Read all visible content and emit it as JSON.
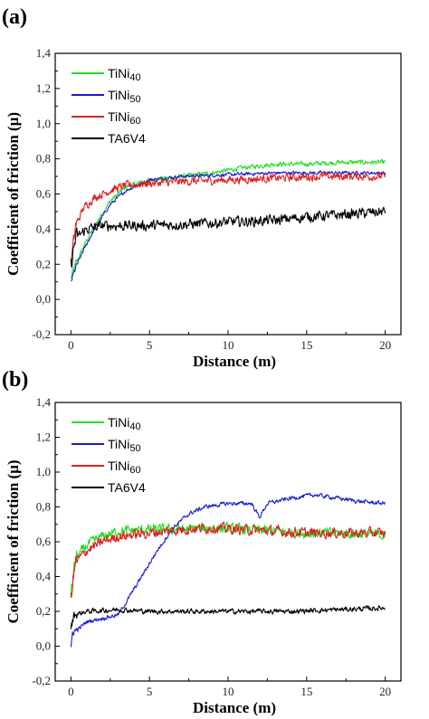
{
  "chart_data": [
    {
      "panel": "(a)",
      "type": "line",
      "xlabel": "Distance (m)",
      "ylabel": "Coefficient of friction (μ)",
      "xlim": [
        -1,
        21
      ],
      "ylim": [
        -0.2,
        1.4
      ],
      "xticks": [
        "0",
        "5",
        "10",
        "15",
        "20"
      ],
      "yticks": [
        "-0,2",
        "0,0",
        "0,2",
        "0,4",
        "0,6",
        "0,8",
        "1,0",
        "1,2",
        "1,4"
      ],
      "legend_position": "top-left",
      "series": [
        {
          "name": "TiNi",
          "sub": "40",
          "color": "#22dd22",
          "noise": 0.02,
          "points": [
            [
              0,
              0.12
            ],
            [
              0.3,
              0.2
            ],
            [
              0.8,
              0.3
            ],
            [
              1.5,
              0.42
            ],
            [
              2.5,
              0.56
            ],
            [
              3.5,
              0.64
            ],
            [
              5,
              0.68
            ],
            [
              7,
              0.7
            ],
            [
              9,
              0.72
            ],
            [
              11,
              0.75
            ],
            [
              13,
              0.77
            ],
            [
              15,
              0.77
            ],
            [
              17,
              0.78
            ],
            [
              20,
              0.78
            ]
          ]
        },
        {
          "name": "TiNi",
          "sub": "50",
          "color": "#1a1acc",
          "noise": 0.015,
          "points": [
            [
              0,
              0.1
            ],
            [
              0.3,
              0.18
            ],
            [
              0.8,
              0.28
            ],
            [
              1.5,
              0.4
            ],
            [
              2.5,
              0.54
            ],
            [
              3.5,
              0.62
            ],
            [
              5,
              0.68
            ],
            [
              7,
              0.7
            ],
            [
              10,
              0.71
            ],
            [
              13,
              0.72
            ],
            [
              16,
              0.72
            ],
            [
              20,
              0.72
            ]
          ]
        },
        {
          "name": "TiNi",
          "sub": "60",
          "color": "#dd2222",
          "noise": 0.035,
          "points": [
            [
              0,
              0.2
            ],
            [
              0.3,
              0.42
            ],
            [
              0.8,
              0.52
            ],
            [
              1.5,
              0.58
            ],
            [
              2.5,
              0.62
            ],
            [
              3.5,
              0.65
            ],
            [
              5,
              0.66
            ],
            [
              7,
              0.67
            ],
            [
              10,
              0.68
            ],
            [
              13,
              0.69
            ],
            [
              16,
              0.7
            ],
            [
              20,
              0.7
            ]
          ]
        },
        {
          "name": "TA6V4",
          "sub": "",
          "color": "#000000",
          "noise": 0.045,
          "points": [
            [
              0,
              0.2
            ],
            [
              0.3,
              0.35
            ],
            [
              1,
              0.4
            ],
            [
              2,
              0.42
            ],
            [
              3,
              0.42
            ],
            [
              5,
              0.42
            ],
            [
              8,
              0.43
            ],
            [
              10,
              0.44
            ],
            [
              13,
              0.45
            ],
            [
              15,
              0.47
            ],
            [
              17,
              0.48
            ],
            [
              20,
              0.5
            ]
          ]
        }
      ]
    },
    {
      "panel": "(b)",
      "type": "line",
      "xlabel": "Distance (m)",
      "ylabel": "Coefficient of friction (μ)",
      "xlim": [
        -1,
        21
      ],
      "ylim": [
        -0.2,
        1.4
      ],
      "xticks": [
        "0",
        "5",
        "10",
        "15",
        "20"
      ],
      "yticks": [
        "-0,2",
        "0,0",
        "0,2",
        "0,4",
        "0,6",
        "0,8",
        "1,0",
        "1,2",
        "1,4"
      ],
      "legend_position": "top-left",
      "series": [
        {
          "name": "TiNi",
          "sub": "40",
          "color": "#22dd22",
          "noise": 0.045,
          "points": [
            [
              0,
              0.3
            ],
            [
              0.3,
              0.5
            ],
            [
              1,
              0.58
            ],
            [
              2,
              0.63
            ],
            [
              3,
              0.66
            ],
            [
              5,
              0.67
            ],
            [
              7,
              0.67
            ],
            [
              9,
              0.68
            ],
            [
              11,
              0.67
            ],
            [
              13,
              0.66
            ],
            [
              15,
              0.65
            ],
            [
              17,
              0.65
            ],
            [
              20,
              0.64
            ]
          ]
        },
        {
          "name": "TiNi",
          "sub": "50",
          "color": "#1a1acc",
          "noise": 0.018,
          "points": [
            [
              0,
              -0.02
            ],
            [
              0.1,
              0.08
            ],
            [
              0.5,
              0.1
            ],
            [
              1,
              0.14
            ],
            [
              2,
              0.16
            ],
            [
              3,
              0.18
            ],
            [
              3.5,
              0.25
            ],
            [
              4.5,
              0.4
            ],
            [
              5.5,
              0.55
            ],
            [
              6.5,
              0.68
            ],
            [
              7.5,
              0.76
            ],
            [
              8.5,
              0.8
            ],
            [
              10,
              0.82
            ],
            [
              11.5,
              0.82
            ],
            [
              12,
              0.74
            ],
            [
              12.5,
              0.82
            ],
            [
              14,
              0.85
            ],
            [
              15.5,
              0.87
            ],
            [
              17,
              0.85
            ],
            [
              18.5,
              0.83
            ],
            [
              20,
              0.82
            ]
          ]
        },
        {
          "name": "TiNi",
          "sub": "60",
          "color": "#dd2222",
          "noise": 0.045,
          "points": [
            [
              0,
              0.3
            ],
            [
              0.3,
              0.48
            ],
            [
              1,
              0.55
            ],
            [
              2,
              0.6
            ],
            [
              3,
              0.63
            ],
            [
              5,
              0.65
            ],
            [
              7,
              0.67
            ],
            [
              9,
              0.68
            ],
            [
              11,
              0.67
            ],
            [
              13,
              0.66
            ],
            [
              15,
              0.65
            ],
            [
              17,
              0.65
            ],
            [
              20,
              0.65
            ]
          ]
        },
        {
          "name": "TA6V4",
          "sub": "",
          "color": "#000000",
          "noise": 0.022,
          "points": [
            [
              0,
              0.1
            ],
            [
              0.2,
              0.18
            ],
            [
              1,
              0.2
            ],
            [
              3,
              0.21
            ],
            [
              5,
              0.2
            ],
            [
              8,
              0.2
            ],
            [
              11,
              0.2
            ],
            [
              14,
              0.2
            ],
            [
              17,
              0.21
            ],
            [
              20,
              0.22
            ]
          ]
        }
      ]
    }
  ]
}
